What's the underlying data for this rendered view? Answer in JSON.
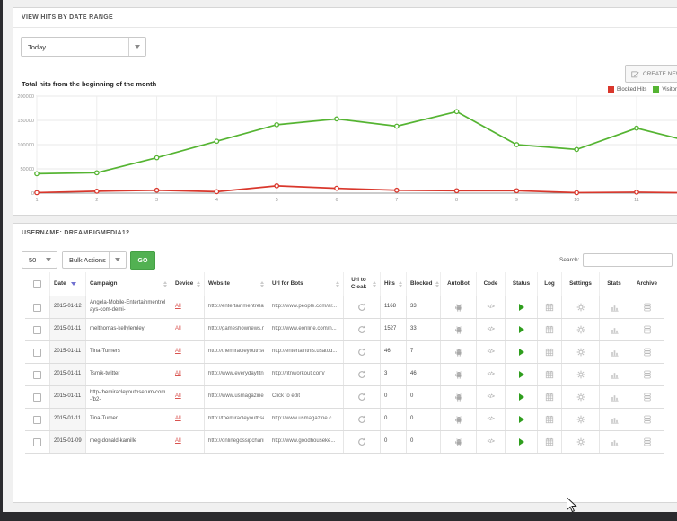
{
  "date_range_panel": {
    "title": "VIEW HITS BY DATE RANGE",
    "range_select_value": "Today",
    "create_button_label": "CREATE NEW CAMPAIGN"
  },
  "chart_data": {
    "type": "line",
    "title": "Total hits from the beginning of the month",
    "x": [
      1,
      2,
      3,
      4,
      5,
      6,
      7,
      8,
      9,
      10,
      11,
      12
    ],
    "series": [
      {
        "name": "Blocked Hits",
        "color": "#d9372c",
        "values": [
          1000,
          4000,
          6000,
          3000,
          15000,
          10000,
          6000,
          5000,
          5000,
          1000,
          2000,
          500
        ]
      },
      {
        "name": "Visitors",
        "color": "#55b432",
        "values": [
          40000,
          42000,
          73000,
          107000,
          141000,
          153000,
          138000,
          168000,
          100000,
          90000,
          134000,
          103000
        ]
      }
    ],
    "xlabel": "",
    "ylabel": "",
    "ylim": [
      0,
      200000
    ],
    "yticks": [
      0,
      50000,
      100000,
      150000,
      200000
    ],
    "grid": true,
    "legend_position": "top-right"
  },
  "table_panel": {
    "title": "USERNAME: DREAMBIGMEDIA12",
    "page_size_value": "50",
    "bulk_actions_value": "Bulk Actions",
    "go_label": "GO",
    "search_label": "Search:",
    "search_value": "",
    "columns": [
      {
        "key": "check",
        "label": "",
        "sortable": false,
        "sorted": false
      },
      {
        "key": "date",
        "label": "Date",
        "sortable": true,
        "sorted": true
      },
      {
        "key": "campaign",
        "label": "Campaign",
        "sortable": true,
        "sorted": false
      },
      {
        "key": "device",
        "label": "Device",
        "sortable": true,
        "sorted": false
      },
      {
        "key": "website",
        "label": "Website",
        "sortable": true,
        "sorted": false
      },
      {
        "key": "url_for_bots",
        "label": "Url for Bots",
        "sortable": true,
        "sorted": false
      },
      {
        "key": "url_to_cloak",
        "label": "Url to Cloak",
        "sortable": true,
        "sorted": false
      },
      {
        "key": "hits",
        "label": "Hits",
        "sortable": true,
        "sorted": false
      },
      {
        "key": "blocked",
        "label": "Blocked",
        "sortable": true,
        "sorted": false
      },
      {
        "key": "autobot",
        "label": "AutoBot",
        "sortable": false,
        "sorted": false
      },
      {
        "key": "code",
        "label": "Code",
        "sortable": false,
        "sorted": false
      },
      {
        "key": "status",
        "label": "Status",
        "sortable": false,
        "sorted": false
      },
      {
        "key": "log",
        "label": "Log",
        "sortable": false,
        "sorted": false
      },
      {
        "key": "settings",
        "label": "Settings",
        "sortable": false,
        "sorted": false
      },
      {
        "key": "stats",
        "label": "Stats",
        "sortable": false,
        "sorted": false
      },
      {
        "key": "archive",
        "label": "Archive",
        "sortable": false,
        "sorted": false
      }
    ],
    "rows": [
      {
        "date": "2015-01-12",
        "campaign": "Angela-Mobile-Entertainmentrelays-com-demi-",
        "device": "All",
        "website": "http://entertainmentrelays...",
        "url_for_bots": "http://www.people.com/ar...",
        "hits": "1168",
        "blocked": "33"
      },
      {
        "date": "2015-01-11",
        "campaign": "melthomas-kellylemley",
        "device": "All",
        "website": "http://gameshownews.net",
        "url_for_bots": "http://www.eonline.com/n...",
        "hits": "1527",
        "blocked": "33"
      },
      {
        "date": "2015-01-11",
        "campaign": "Tina-Turners",
        "device": "All",
        "website": "http://themiracleyouthser...",
        "url_for_bots": "http://entertainthis.usatod...",
        "hits": "46",
        "blocked": "7"
      },
      {
        "date": "2015-01-11",
        "campaign": "Tsmik-twitter",
        "device": "All",
        "website": "http://www.everydayfitnes...",
        "url_for_bots": "http://fitnworkout.com/",
        "hits": "3",
        "blocked": "46"
      },
      {
        "date": "2015-01-11",
        "campaign": "http-themiracleyouthserum-com-fb2-",
        "device": "All",
        "website": "http://www.usmagazine.c...",
        "url_for_bots": "Click to edit",
        "hits": "0",
        "blocked": "0"
      },
      {
        "date": "2015-01-11",
        "campaign": "Tina-Turner",
        "device": "All",
        "website": "http://themiracleyouthser...",
        "url_for_bots": "http://www.usmagazine.c...",
        "hits": "0",
        "blocked": "0"
      },
      {
        "date": "2015-01-09",
        "campaign": "meg-donald-kamille",
        "device": "All",
        "website": "http://onlinegossipchann...",
        "url_for_bots": "http://www.goodhouseke...",
        "hits": "0",
        "blocked": "0"
      }
    ],
    "icons": {
      "url_to_cloak": "refresh-icon",
      "autobot": "android-robot-icon",
      "code": "code-brackets-icon",
      "status": "play-icon",
      "log": "calendar-icon",
      "settings": "gear-icon",
      "stats": "bar-chart-icon",
      "archive": "database-icon"
    }
  },
  "colors": {
    "accent_green": "#52b152",
    "status_green": "#2f9e1e",
    "chart_green": "#55b432",
    "chart_red": "#d9372c",
    "device_link_red": "#d9534f",
    "sort_active_blue": "#7070d0",
    "bottom_bar": "#2b2b2e"
  }
}
